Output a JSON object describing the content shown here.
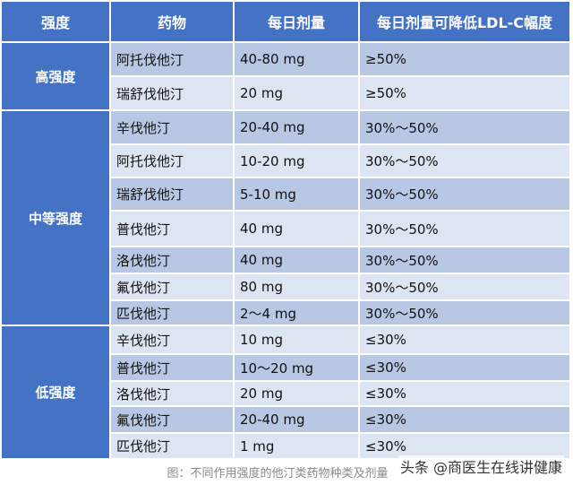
{
  "headers": [
    "强度",
    "药物",
    "每日剂量",
    "每日剂量可降低LDL-C幅度"
  ],
  "groups": [
    {
      "label": "高强度",
      "rows": [
        {
          "drug": "阿托伐他汀",
          "dose": "40-80 mg",
          "ldl": "≥50%"
        },
        {
          "drug": "瑞舒伐他汀",
          "dose": "20 mg",
          "ldl": "≥50%"
        }
      ]
    },
    {
      "label": "中等强度",
      "rows": [
        {
          "drug": "辛伐他汀",
          "dose": "20-40 mg",
          "ldl": "30%～50%"
        },
        {
          "drug": "阿托伐他汀",
          "dose": "10-20 mg",
          "ldl": "30%～50%"
        },
        {
          "drug": "瑞舒伐他汀",
          "dose": "5-10 mg",
          "ldl": "30%～50%"
        },
        {
          "drug": "普伐他汀",
          "dose": "40 mg",
          "ldl": "30%～50%"
        },
        {
          "drug": "洛伐他汀",
          "dose": "40 mg",
          "ldl": "30%～50%"
        },
        {
          "drug": "氟伐他汀",
          "dose": "80 mg",
          "ldl": "30%～50%"
        },
        {
          "drug": "匹伐他汀",
          "dose": "2～4 mg",
          "ldl": "30%～50%"
        }
      ]
    },
    {
      "label": "低强度",
      "rows": [
        {
          "drug": "辛伐他汀",
          "dose": "10 mg",
          "ldl": "≤30%"
        },
        {
          "drug": "普伐他汀",
          "dose": "10～20 mg",
          "ldl": "≤30%"
        },
        {
          "drug": "洛伐他汀",
          "dose": "20 mg",
          "ldl": "≤30%"
        },
        {
          "drug": "氟伐他汀",
          "dose": "20-40 mg",
          "ldl": "≤30%"
        },
        {
          "drug": "匹伐他汀",
          "dose": "1 mg",
          "ldl": "≤30%"
        }
      ]
    }
  ],
  "caption": "图：不同作用强度的他汀类药物种类及剂量",
  "watermark": "头条 @商医生在线讲健康",
  "colors": {
    "header": "#4472c4",
    "row_dark": "#b8c7e3",
    "row_light": "#dde5f2"
  }
}
